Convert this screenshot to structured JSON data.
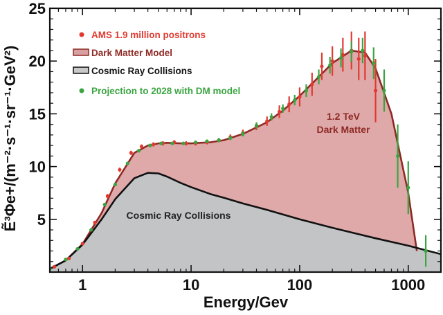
{
  "chart_data": {
    "type": "line",
    "xscale": "log",
    "xlim": [
      0.5,
      2000
    ],
    "ylim": [
      0,
      25
    ],
    "xlabel": "Energy/Gev",
    "ylabel": "Ẽ³Φe+/(m⁻²·s⁻¹·sr⁻¹·GeV²)",
    "x_ticks": [
      "1",
      "10",
      "100",
      "1000"
    ],
    "y_ticks": [
      "5",
      "10",
      "15",
      "20",
      "25"
    ],
    "legend": [
      {
        "label": "AMS 1.9 million positrons",
        "color": "#e03a30",
        "marker": "dot"
      },
      {
        "label": "Dark Matter Model",
        "color": "#8e2a25",
        "marker": "band"
      },
      {
        "label": "Cosmic Ray Collisions",
        "color": "#111111",
        "marker": "line"
      },
      {
        "label": "Projection to 2028 with DM model",
        "color": "#3aa540",
        "marker": "dot"
      }
    ],
    "annotations": {
      "dark_matter_line1": "1.2 TeV",
      "dark_matter_line2": "Dark Matter",
      "cosmic": "Cosmic Ray Collisions"
    },
    "series": [
      {
        "name": "Cosmic Ray Collisions",
        "x": [
          0.5,
          0.7,
          1,
          1.5,
          2,
          3,
          4,
          5,
          6,
          8,
          10,
          15,
          20,
          30,
          50,
          100,
          200,
          500,
          1000,
          2000
        ],
        "y": [
          0.3,
          1.1,
          2.6,
          5.0,
          6.9,
          8.9,
          9.4,
          9.35,
          9.05,
          8.45,
          8.05,
          7.4,
          7.05,
          6.5,
          5.9,
          5.0,
          4.2,
          3.2,
          2.5,
          1.7
        ]
      },
      {
        "name": "Dark Matter Model",
        "x": [
          0.5,
          0.7,
          1,
          1.5,
          2,
          3,
          4,
          5,
          6,
          8,
          10,
          15,
          20,
          30,
          50,
          70,
          100,
          150,
          200,
          300,
          400,
          500,
          700,
          1000,
          1200
        ],
        "y": [
          0.3,
          1.1,
          2.65,
          5.6,
          8.4,
          11.3,
          12.0,
          12.2,
          12.25,
          12.2,
          12.2,
          12.3,
          12.5,
          13.1,
          14.2,
          15.3,
          16.7,
          18.5,
          19.8,
          21.0,
          20.8,
          19.3,
          15.0,
          7.5,
          2.0
        ]
      },
      {
        "name": "AMS 1.9 million positrons",
        "x": [
          0.55,
          0.75,
          1.0,
          1.3,
          1.7,
          2.2,
          2.8,
          3.5,
          4.5,
          5.5,
          7,
          9,
          11,
          14,
          18,
          23,
          30,
          40,
          50,
          65,
          80,
          100,
          130,
          160,
          200,
          250,
          300,
          350,
          400,
          500
        ],
        "y": [
          0.5,
          1.3,
          2.7,
          4.7,
          7.2,
          9.7,
          11.3,
          11.9,
          12.1,
          12.2,
          12.3,
          12.2,
          12.2,
          12.3,
          12.5,
          12.8,
          13.2,
          13.8,
          14.3,
          15.2,
          15.9,
          16.6,
          17.8,
          19.5,
          20.0,
          20.6,
          21.0,
          20.2,
          20.5,
          17.2
        ],
        "yerr": [
          0.1,
          0.1,
          0.1,
          0.15,
          0.2,
          0.2,
          0.2,
          0.2,
          0.2,
          0.2,
          0.2,
          0.2,
          0.2,
          0.2,
          0.2,
          0.25,
          0.3,
          0.35,
          0.45,
          0.6,
          0.75,
          0.9,
          1.1,
          1.3,
          1.4,
          1.6,
          1.8,
          2.0,
          2.3,
          3.0
        ]
      },
      {
        "name": "Projection to 2028 with DM model",
        "x": [
          0.5,
          0.7,
          0.9,
          1.2,
          1.6,
          2.0,
          2.6,
          3.3,
          4.2,
          5.3,
          6.7,
          8.5,
          11,
          14,
          18,
          23,
          30,
          40,
          55,
          70,
          90,
          115,
          150,
          190,
          240,
          300,
          380,
          480,
          600,
          800,
          1000,
          1450
        ],
        "y": [
          0.3,
          1.2,
          2.2,
          4.0,
          6.4,
          8.3,
          10.3,
          11.5,
          12.0,
          12.2,
          12.2,
          12.2,
          12.3,
          12.4,
          12.5,
          12.7,
          13.1,
          13.9,
          14.7,
          15.5,
          16.3,
          17.2,
          18.5,
          19.6,
          20.3,
          20.9,
          21.0,
          19.8,
          17.2,
          11.0,
          8.0,
          2.0
        ],
        "yerr": [
          0.1,
          0.1,
          0.1,
          0.1,
          0.15,
          0.15,
          0.15,
          0.15,
          0.15,
          0.15,
          0.15,
          0.15,
          0.15,
          0.15,
          0.2,
          0.2,
          0.25,
          0.3,
          0.35,
          0.4,
          0.5,
          0.6,
          0.7,
          0.8,
          0.9,
          1.0,
          1.2,
          1.5,
          2.0,
          3.0,
          2.5,
          1.5
        ]
      }
    ]
  }
}
